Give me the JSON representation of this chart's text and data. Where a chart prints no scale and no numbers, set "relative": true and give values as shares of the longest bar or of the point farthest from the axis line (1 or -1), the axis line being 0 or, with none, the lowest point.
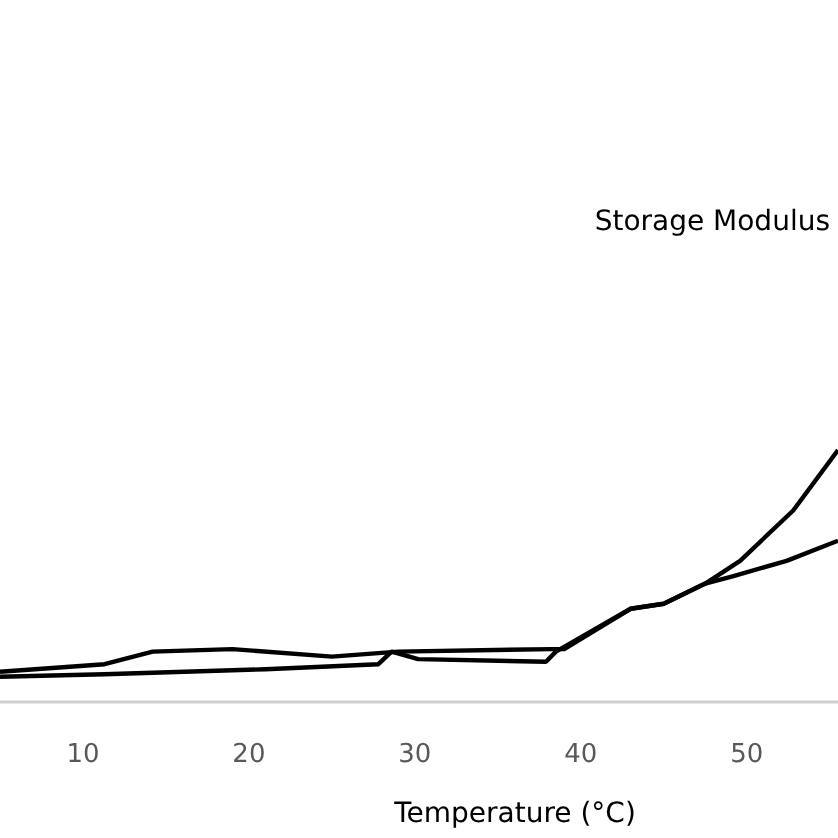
{
  "chart_data": {
    "type": "line",
    "relative": true,
    "xlabel": "Temperature (°C)",
    "xlim": [
      5,
      55.5
    ],
    "xticks": [
      10,
      20,
      30,
      40,
      50
    ],
    "annotations": [
      "Storage Modulus"
    ],
    "line_style": "solid",
    "series": [
      {
        "color": "#000000",
        "x": [
          5,
          11.3,
          14.2,
          19,
          25,
          29,
          38.3,
          39,
          43,
          45,
          47.5,
          49.6,
          52.8,
          55.5
        ],
        "values": [
          0.12,
          0.15,
          0.2,
          0.21,
          0.18,
          0.2,
          0.21,
          0.21,
          0.37,
          0.39,
          0.47,
          0.56,
          0.76,
          1
        ]
      },
      {
        "color": "#000000",
        "x": [
          5,
          11.3,
          21,
          27.8,
          28.6,
          30.2,
          37.9,
          38.5,
          43,
          45,
          47.5,
          49.2,
          52.4,
          55.5
        ],
        "values": [
          0.1,
          0.11,
          0.13,
          0.15,
          0.2,
          0.17,
          0.16,
          0.2,
          0.37,
          0.39,
          0.47,
          0.5,
          0.56,
          0.64
        ]
      }
    ]
  }
}
